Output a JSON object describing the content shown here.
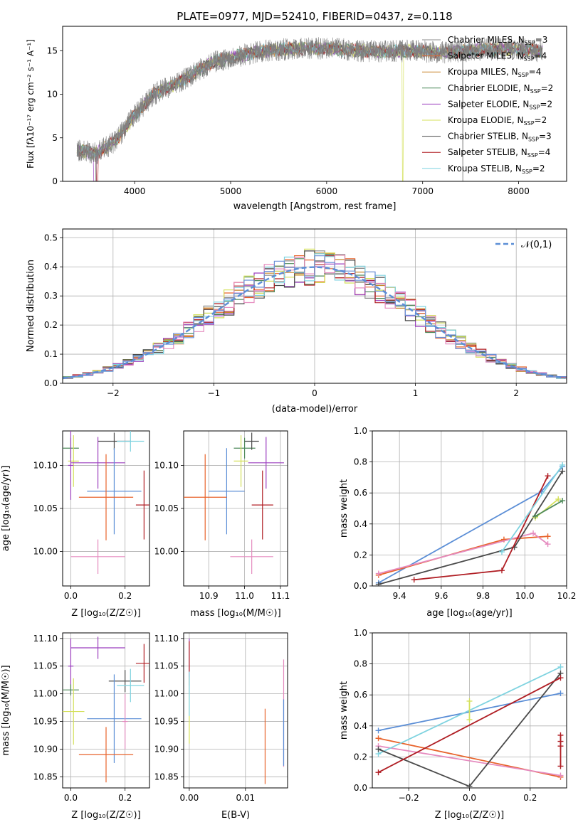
{
  "chart_data": [
    {
      "id": "spectrum",
      "type": "line",
      "title": "PLATE=0977, MJD=52410, FIBERID=0437, z=0.118",
      "xlabel": "wavelength [Angstrom, rest frame]",
      "ylabel": "Flux [fλ10⁻¹⁷ erg cm⁻² s⁻¹ A⁻¹]",
      "xlim": [
        3250,
        8500
      ],
      "ylim": [
        0,
        17.8
      ],
      "xticks": [
        4000,
        5000,
        6000,
        7000,
        8000
      ],
      "yticks": [
        0,
        5,
        10,
        15
      ],
      "grid": false,
      "legend_position": "top-right",
      "observed_color": "#808080",
      "observed": {
        "x": [
          3400,
          3600,
          3800,
          4000,
          4200,
          4500,
          4800,
          5000,
          5300,
          5600,
          6000,
          6300,
          6600,
          6900,
          7200,
          7600,
          8000,
          8250
        ],
        "y": [
          3.6,
          3.2,
          4.6,
          7.6,
          10.0,
          11.6,
          13.6,
          14.2,
          14.9,
          15.2,
          15.3,
          15.0,
          14.9,
          15.0,
          14.8,
          15.1,
          15.2,
          14.9
        ]
      },
      "series": [
        {
          "name": "Chabrier MILES, N",
          "sub": "SSP",
          "suffix": "=3",
          "color": "#8c8c8c"
        },
        {
          "name": "Salpeter MILES, N",
          "sub": "SSP",
          "suffix": "=4",
          "color": "#e8632b"
        },
        {
          "name": "Kroupa MILES, N",
          "sub": "SSP",
          "suffix": "=4",
          "color": "#c8862a"
        },
        {
          "name": "Chabrier ELODIE, N",
          "sub": "SSP",
          "suffix": "=2",
          "color": "#4f8a5b"
        },
        {
          "name": "Salpeter ELODIE, N",
          "sub": "SSP",
          "suffix": "=2",
          "color": "#9b3fbf"
        },
        {
          "name": "Kroupa ELODIE, N",
          "sub": "SSP",
          "suffix": "=2",
          "color": "#d4e05a"
        },
        {
          "name": "Chabrier STELIB, N",
          "sub": "SSP",
          "suffix": "=3",
          "color": "#4a4a4a"
        },
        {
          "name": "Salpeter STELIB, N",
          "sub": "SSP",
          "suffix": "=4",
          "color": "#b01e24"
        },
        {
          "name": "Kroupa STELIB, N",
          "sub": "SSP",
          "suffix": "=2",
          "color": "#7fd3e0"
        }
      ]
    },
    {
      "id": "residuals",
      "type": "line",
      "xlabel": "(data-model)/error",
      "ylabel": "Normed distribution",
      "xlim": [
        -2.5,
        2.5
      ],
      "ylim": [
        0,
        0.53
      ],
      "xticks": [
        -2,
        -1,
        0,
        1,
        2
      ],
      "yticks": [
        0.0,
        0.1,
        0.2,
        0.3,
        0.4,
        0.5
      ],
      "grid": true,
      "legend_position": "top-right",
      "legend_label": "𝒩(0,1)",
      "normal_color": "#5b8ed6",
      "histogram_colors": [
        "#8c8c8c",
        "#e8632b",
        "#c8862a",
        "#4f8a5b",
        "#9b3fbf",
        "#d4e05a",
        "#4a4a4a",
        "#b01e24",
        "#7fd3e0",
        "#e58bbf",
        "#6a8fd8"
      ],
      "bin_width": 0.1
    },
    {
      "id": "age-vs-z",
      "type": "scatter",
      "xlabel": "Z [log₁₀(Z/Z☉)]",
      "ylabel": "age  [log₁₀(age/yr)]",
      "xlim": [
        -0.03,
        0.29
      ],
      "ylim": [
        9.96,
        10.14
      ],
      "xticks": [
        0.0,
        0.2
      ],
      "yticks": [
        10.0,
        10.05,
        10.1
      ],
      "grid": true,
      "points": [
        {
          "x": 0.0,
          "y": 10.12,
          "xerr": 0.03,
          "yerr": 0.012,
          "color": "#4f8a5b"
        },
        {
          "x": 0.16,
          "y": 10.128,
          "xerr": 0.06,
          "yerr": 0.01,
          "color": "#4a4a4a"
        },
        {
          "x": 0.22,
          "y": 10.128,
          "xerr": 0.05,
          "yerr": 0.012,
          "color": "#7fd3e0"
        },
        {
          "x": 0.01,
          "y": 10.105,
          "xerr": 0.02,
          "yerr": 0.03,
          "color": "#d4e05a"
        },
        {
          "x": 0.1,
          "y": 10.103,
          "xerr": 0.1,
          "yerr": 0.03,
          "color": "#9b3fbf"
        },
        {
          "x": 0.0,
          "y": 10.1,
          "xerr": 0.01,
          "yerr": 0.04,
          "color": "#9b3fbf"
        },
        {
          "x": 0.16,
          "y": 10.07,
          "xerr": 0.1,
          "yerr": 0.05,
          "color": "#5b8ed6"
        },
        {
          "x": 0.13,
          "y": 10.063,
          "xerr": 0.1,
          "yerr": 0.05,
          "color": "#e8632b"
        },
        {
          "x": 0.27,
          "y": 10.054,
          "xerr": 0.03,
          "yerr": 0.04,
          "color": "#b01e24"
        },
        {
          "x": 0.1,
          "y": 9.994,
          "xerr": 0.1,
          "yerr": 0.02,
          "color": "#e58bbf"
        }
      ]
    },
    {
      "id": "age-vs-mass",
      "type": "scatter",
      "xlabel": "mass [log₁₀(M/M☉)]",
      "ylabel": "",
      "xlim": [
        10.83,
        11.12
      ],
      "ylim": [
        9.96,
        10.14
      ],
      "xticks": [
        10.9,
        11.0,
        11.1
      ],
      "yticks": [
        10.0,
        10.05,
        10.1
      ],
      "grid": true,
      "points": [
        {
          "x": 11.0,
          "y": 10.12,
          "xerr": 0.03,
          "yerr": 0.012,
          "color": "#4f8a5b"
        },
        {
          "x": 11.02,
          "y": 10.128,
          "xerr": 0.02,
          "yerr": 0.01,
          "color": "#4a4a4a"
        },
        {
          "x": 10.99,
          "y": 10.105,
          "xerr": 0.02,
          "yerr": 0.03,
          "color": "#d4e05a"
        },
        {
          "x": 11.06,
          "y": 10.103,
          "xerr": 0.05,
          "yerr": 0.03,
          "color": "#9b3fbf"
        },
        {
          "x": 10.95,
          "y": 10.07,
          "xerr": 0.05,
          "yerr": 0.05,
          "color": "#5b8ed6"
        },
        {
          "x": 10.89,
          "y": 10.063,
          "xerr": 0.06,
          "yerr": 0.05,
          "color": "#e8632b"
        },
        {
          "x": 11.05,
          "y": 10.054,
          "xerr": 0.03,
          "yerr": 0.04,
          "color": "#b01e24"
        },
        {
          "x": 11.02,
          "y": 9.994,
          "xerr": 0.06,
          "yerr": 0.02,
          "color": "#e58bbf"
        }
      ]
    },
    {
      "id": "mass-weight-vs-age",
      "type": "line",
      "xlabel": "age  [log₁₀(age/yr)]",
      "ylabel": "mass weight",
      "xlim": [
        9.27,
        10.2
      ],
      "ylim": [
        0,
        1
      ],
      "xticks": [
        9.4,
        9.6,
        9.8,
        10.0,
        10.2
      ],
      "yticks": [
        0.0,
        0.2,
        0.4,
        0.6,
        0.8,
        1.0
      ],
      "grid": true,
      "series": [
        {
          "color": "#5b8ed6",
          "x": [
            9.3,
            10.08,
            10.18
          ],
          "y": [
            0.02,
            0.61,
            0.77
          ]
        },
        {
          "color": "#e8632b",
          "x": [
            9.3,
            9.9,
            10.11
          ],
          "y": [
            0.07,
            0.3,
            0.32
          ]
        },
        {
          "color": "#e58bbf",
          "x": [
            9.3,
            10.04,
            10.11
          ],
          "y": [
            0.08,
            0.34,
            0.27
          ]
        },
        {
          "color": "#4a4a4a",
          "x": [
            9.3,
            9.95,
            10.18
          ],
          "y": [
            0.01,
            0.25,
            0.74
          ]
        },
        {
          "color": "#b01e24",
          "x": [
            9.47,
            9.89,
            10.11
          ],
          "y": [
            0.04,
            0.1,
            0.71
          ]
        },
        {
          "color": "#7fd3e0",
          "x": [
            9.89,
            10.18
          ],
          "y": [
            0.22,
            0.78
          ]
        },
        {
          "color": "#d4e05a",
          "x": [
            10.05,
            10.16
          ],
          "y": [
            0.44,
            0.56
          ]
        },
        {
          "color": "#4f8a5b",
          "x": [
            10.05,
            10.18
          ],
          "y": [
            0.45,
            0.55
          ]
        }
      ]
    },
    {
      "id": "mass-vs-z",
      "type": "scatter",
      "xlabel": "Z [log₁₀(Z/Z☉)]",
      "ylabel": "mass [log₁₀(M/M☉)]",
      "xlim": [
        -0.03,
        0.29
      ],
      "ylim": [
        10.83,
        11.11
      ],
      "xticks": [
        0.0,
        0.2
      ],
      "yticks": [
        10.85,
        10.9,
        10.95,
        11.0,
        11.05,
        11.1
      ],
      "grid": true,
      "points": [
        {
          "x": 0.1,
          "y": 11.083,
          "xerr": 0.1,
          "yerr": 0.02,
          "color": "#9b3fbf"
        },
        {
          "x": 0.0,
          "y": 11.05,
          "xerr": 0.01,
          "yerr": 0.05,
          "color": "#9b3fbf"
        },
        {
          "x": 0.27,
          "y": 11.055,
          "xerr": 0.03,
          "yerr": 0.035,
          "color": "#b01e24"
        },
        {
          "x": 0.2,
          "y": 11.023,
          "xerr": 0.06,
          "yerr": 0.02,
          "color": "#4a4a4a"
        },
        {
          "x": 0.0,
          "y": 11.007,
          "xerr": 0.03,
          "yerr": 0.01,
          "color": "#4f8a5b"
        },
        {
          "x": 0.22,
          "y": 11.015,
          "xerr": 0.05,
          "yerr": 0.03,
          "color": "#7fd3e0"
        },
        {
          "x": 0.01,
          "y": 10.968,
          "xerr": 0.04,
          "yerr": 0.06,
          "color": "#d4e05a"
        },
        {
          "x": 0.16,
          "y": 10.955,
          "xerr": 0.1,
          "yerr": 0.08,
          "color": "#5b8ed6"
        },
        {
          "x": 0.13,
          "y": 10.89,
          "xerr": 0.1,
          "yerr": 0.05,
          "color": "#e8632b"
        },
        {
          "x": 0.2,
          "y": 10.95,
          "xerr": 0.01,
          "yerr": 0.05,
          "color": "#e58bbf"
        }
      ]
    },
    {
      "id": "mass-vs-ebv",
      "type": "scatter",
      "xlabel": "E(B-V)",
      "ylabel": "",
      "xlim": [
        -0.001,
        0.0175
      ],
      "ylim": [
        10.83,
        11.11
      ],
      "xticks": [
        0.0,
        0.01
      ],
      "yticks": [
        10.85,
        10.9,
        10.95,
        11.0,
        11.05,
        11.1
      ],
      "grid": true,
      "points": [
        {
          "x": 0.0,
          "y": 11.05,
          "xerr": 0,
          "yerr": 0.05,
          "color": "#9b3fbf"
        },
        {
          "x": 0.0,
          "y": 11.055,
          "xerr": 0,
          "yerr": 0.04,
          "color": "#b01e24"
        },
        {
          "x": 0.0,
          "y": 10.97,
          "xerr": 0,
          "yerr": 0.06,
          "color": "#d4e05a"
        },
        {
          "x": 0.0,
          "y": 11.0,
          "xerr": 0,
          "yerr": 0.04,
          "color": "#7fd3e0"
        },
        {
          "x": 0.0135,
          "y": 10.905,
          "xerr": 0,
          "yerr": 0.068,
          "color": "#e8632b"
        },
        {
          "x": 0.0168,
          "y": 10.965,
          "xerr": 0,
          "yerr": 0.097,
          "color": "#e58bbf"
        },
        {
          "x": 0.0168,
          "y": 10.93,
          "xerr": 0,
          "yerr": 0.06,
          "color": "#5b8ed6"
        }
      ]
    },
    {
      "id": "mass-weight-vs-z",
      "type": "line",
      "xlabel": "Z [log₁₀(Z/Z☉)]",
      "ylabel": "mass weight",
      "xlim": [
        -0.32,
        0.32
      ],
      "ylim": [
        0,
        1
      ],
      "xticks": [
        -0.2,
        0.0,
        0.2
      ],
      "yticks": [
        0.0,
        0.2,
        0.4,
        0.6,
        0.8,
        1.0
      ],
      "grid": true,
      "series": [
        {
          "color": "#5b8ed6",
          "x": [
            -0.3,
            0.3
          ],
          "y": [
            0.37,
            0.61
          ]
        },
        {
          "color": "#e8632b",
          "x": [
            -0.3,
            0.3
          ],
          "y": [
            0.32,
            0.07
          ]
        },
        {
          "color": "#e58bbf",
          "x": [
            -0.3,
            0.3
          ],
          "y": [
            0.27,
            0.08
          ]
        },
        {
          "color": "#7fd3e0",
          "x": [
            -0.3,
            0.3
          ],
          "y": [
            0.22,
            0.78
          ]
        },
        {
          "color": "#4a4a4a",
          "x": [
            -0.3,
            0.0,
            0.3
          ],
          "y": [
            0.25,
            0.01,
            0.74
          ]
        },
        {
          "color": "#b01e24",
          "x": [
            -0.3,
            0.3
          ],
          "y": [
            0.1,
            0.71
          ]
        },
        {
          "color": "#d4e05a",
          "x": [
            0.0,
            0.0
          ],
          "y": [
            0.44,
            0.56
          ]
        },
        {
          "color": "#b01e24",
          "x": [
            0.3,
            0.3,
            0.3,
            0.3
          ],
          "y": [
            0.34,
            0.3,
            0.27,
            0.14
          ]
        }
      ]
    }
  ]
}
